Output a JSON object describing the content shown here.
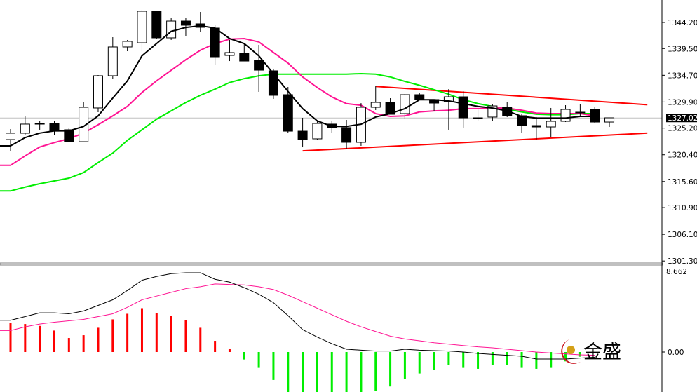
{
  "chart_data": {
    "type": "candlestick",
    "price_panel": {
      "y_ticks": [
        "1344.20",
        "1339.50",
        "1334.70",
        "1329.90",
        "1325.20",
        "1320.40",
        "1315.60",
        "1310.90",
        "1306.10",
        "1301.30"
      ],
      "ylim": [
        1301.3,
        1348.2
      ],
      "current_price": "1327.02",
      "current_price_line_color": "#c0c0c0",
      "candles": [
        [
          1323.14,
          1325.03,
          1321.12,
          1324.28
        ],
        [
          1324.28,
          1327.43,
          1324.02,
          1325.92
        ],
        [
          1325.92,
          1326.42,
          1324.91,
          1326.04
        ],
        [
          1326.04,
          1326.42,
          1323.9,
          1324.65
        ],
        [
          1324.91,
          1325.16,
          1322.64,
          1322.76
        ],
        [
          1322.76,
          1329.95,
          1322.64,
          1328.94
        ],
        [
          1328.82,
          1334.74,
          1328.06,
          1334.62
        ],
        [
          1334.62,
          1341.55,
          1334.11,
          1339.79
        ],
        [
          1339.79,
          1341.05,
          1339.03,
          1340.8
        ],
        [
          1340.54,
          1346.47,
          1339.03,
          1346.22
        ],
        [
          1346.22,
          1346.34,
          1341.3,
          1341.43
        ],
        [
          1341.43,
          1345.08,
          1341.05,
          1344.45
        ],
        [
          1344.45,
          1345.08,
          1341.8,
          1343.7
        ],
        [
          1343.95,
          1346.09,
          1342.56,
          1343.32
        ],
        [
          1343.19,
          1343.82,
          1336.63,
          1338.02
        ],
        [
          1338.27,
          1341.05,
          1337.26,
          1338.78
        ],
        [
          1338.65,
          1340.42,
          1337.26,
          1337.26
        ],
        [
          1337.39,
          1340.16,
          1331.72,
          1335.62
        ],
        [
          1335.5,
          1335.88,
          1330.46,
          1331.09
        ],
        [
          1331.21,
          1332.6,
          1324.28,
          1324.65
        ],
        [
          1324.65,
          1327.05,
          1321.75,
          1323.14
        ],
        [
          1323.27,
          1326.42,
          1323.14,
          1326.04
        ],
        [
          1325.92,
          1326.55,
          1324.28,
          1325.29
        ],
        [
          1325.29,
          1326.67,
          1321.38,
          1322.64
        ],
        [
          1322.64,
          1329.7,
          1322.01,
          1328.94
        ],
        [
          1328.94,
          1332.72,
          1328.44,
          1329.82
        ],
        [
          1329.82,
          1330.58,
          1327.68,
          1327.68
        ],
        [
          1327.81,
          1331.34,
          1326.8,
          1331.21
        ],
        [
          1331.21,
          1331.59,
          1330.2,
          1330.33
        ],
        [
          1330.33,
          1330.33,
          1328.31,
          1329.7
        ],
        [
          1329.95,
          1332.22,
          1324.91,
          1330.83
        ],
        [
          1330.83,
          1331.84,
          1325.29,
          1327.05
        ],
        [
          1327.05,
          1328.69,
          1326.42,
          1327.05
        ],
        [
          1327.18,
          1329.45,
          1326.42,
          1329.19
        ],
        [
          1328.94,
          1329.95,
          1327.18,
          1327.43
        ],
        [
          1327.43,
          1327.68,
          1324.28,
          1325.66
        ],
        [
          1325.66,
          1327.18,
          1323.14,
          1325.41
        ],
        [
          1325.41,
          1328.82,
          1323.52,
          1326.42
        ],
        [
          1326.42,
          1329.32,
          1326.29,
          1328.56
        ],
        [
          1328.06,
          1329.57,
          1327.43,
          1328.06
        ],
        [
          1328.56,
          1328.94,
          1326.04,
          1326.29
        ],
        [
          1326.29,
          1327.05,
          1325.41,
          1327.05
        ]
      ],
      "moving_averages": [
        {
          "color": "#000000",
          "values": [
            1322.0,
            1323.5,
            1324.3,
            1324.7,
            1324.7,
            1325.5,
            1327.4,
            1330.6,
            1333.7,
            1338.2,
            1340.4,
            1342.6,
            1343.3,
            1343.6,
            1343.2,
            1341.3,
            1340.4,
            1338.2,
            1335.0,
            1331.8,
            1328.7,
            1326.5,
            1325.5,
            1325.5,
            1325.9,
            1327.2,
            1327.8,
            1328.7,
            1330.3,
            1330.3,
            1330.1,
            1329.6,
            1329.1,
            1328.8,
            1328.3,
            1327.3,
            1327.0,
            1327.0,
            1327.0,
            1327.3,
            1327.3
          ]
        },
        {
          "color": "#ff1493",
          "values": [
            1318.5,
            1320.2,
            1321.8,
            1322.6,
            1323.3,
            1324.3,
            1325.8,
            1327.4,
            1329.1,
            1331.6,
            1333.7,
            1335.6,
            1337.5,
            1339.2,
            1340.4,
            1341.2,
            1341.3,
            1340.7,
            1338.8,
            1336.9,
            1334.4,
            1332.5,
            1330.8,
            1329.6,
            1329.3,
            1327.8,
            1327.3,
            1327.4,
            1328.1,
            1328.3,
            1328.4,
            1328.7,
            1328.7,
            1328.8,
            1328.8,
            1328.4,
            1327.9,
            1327.8,
            1327.8,
            1327.8,
            1327.4
          ]
        },
        {
          "color": "#00ee00",
          "values": [
            1313.9,
            1314.6,
            1315.2,
            1315.7,
            1316.2,
            1317.2,
            1319.0,
            1320.7,
            1323.0,
            1324.9,
            1326.8,
            1328.3,
            1329.8,
            1331.1,
            1332.2,
            1333.4,
            1334.1,
            1334.6,
            1334.9,
            1334.9,
            1334.9,
            1334.9,
            1334.9,
            1334.9,
            1335.0,
            1334.9,
            1334.4,
            1333.6,
            1332.9,
            1332.1,
            1331.3,
            1330.3,
            1329.6,
            1329.1,
            1328.6,
            1328.1,
            1327.7,
            1327.6,
            1327.6,
            1327.8,
            1327.8
          ]
        }
      ],
      "trendlines": [
        {
          "color": "#ff0000",
          "from": [
            26,
            1332.7
          ],
          "to": [
            44.6,
            1329.4
          ]
        },
        {
          "color": "#ff0000",
          "from": [
            21,
            1321.1
          ],
          "to": [
            44.6,
            1324.3
          ]
        }
      ]
    },
    "macd_panel": {
      "y_ticks": [
        "8.662",
        "0.00"
      ],
      "ylim": [
        -4.3,
        8.662
      ],
      "histogram": [
        3.1,
        3.0,
        2.8,
        2.3,
        1.5,
        1.8,
        2.6,
        3.5,
        4.1,
        4.7,
        4.2,
        3.9,
        3.4,
        2.6,
        1.2,
        0.3,
        -0.8,
        -1.7,
        -3.0,
        -4.6,
        -5.0,
        -5.2,
        -5.2,
        -5.0,
        -4.8,
        -4.2,
        -3.7,
        -2.9,
        -2.3,
        -1.9,
        -1.4,
        -1.7,
        -1.8,
        -1.4,
        -1.4,
        -1.7,
        -1.8,
        -1.7,
        -1.0,
        -0.5
      ],
      "positive_color": "#ff0000",
      "negative_color": "#00ee00",
      "macd_line": {
        "color": "#000000",
        "values": [
          3.4,
          3.8,
          4.2,
          4.2,
          4.1,
          4.4,
          5.0,
          5.6,
          6.6,
          7.7,
          8.1,
          8.4,
          8.5,
          8.5,
          7.8,
          7.5,
          6.9,
          6.2,
          5.3,
          3.9,
          2.4,
          1.6,
          0.9,
          0.3,
          0.2,
          0.1,
          0.1,
          0.3,
          0.2,
          0.15,
          0.1,
          0.0,
          -0.15,
          -0.25,
          -0.35,
          -0.45,
          -0.75,
          -0.75,
          -0.75,
          -0.65,
          -0.55
        ]
      },
      "signal_line": {
        "color": "#ff1493",
        "values": [
          2.3,
          2.7,
          3.0,
          3.2,
          3.35,
          3.5,
          3.8,
          4.1,
          4.8,
          5.6,
          6.0,
          6.4,
          6.8,
          7.0,
          7.3,
          7.25,
          7.2,
          7.0,
          6.7,
          6.1,
          5.4,
          4.7,
          4.0,
          3.3,
          2.7,
          2.2,
          1.7,
          1.4,
          1.2,
          1.0,
          0.85,
          0.7,
          0.55,
          0.45,
          0.3,
          0.15,
          0.0,
          -0.1,
          -0.2,
          -0.3,
          -0.35
        ]
      }
    }
  },
  "watermark": {
    "text": "金盛",
    "icon": "jinsheng-logo-icon"
  }
}
